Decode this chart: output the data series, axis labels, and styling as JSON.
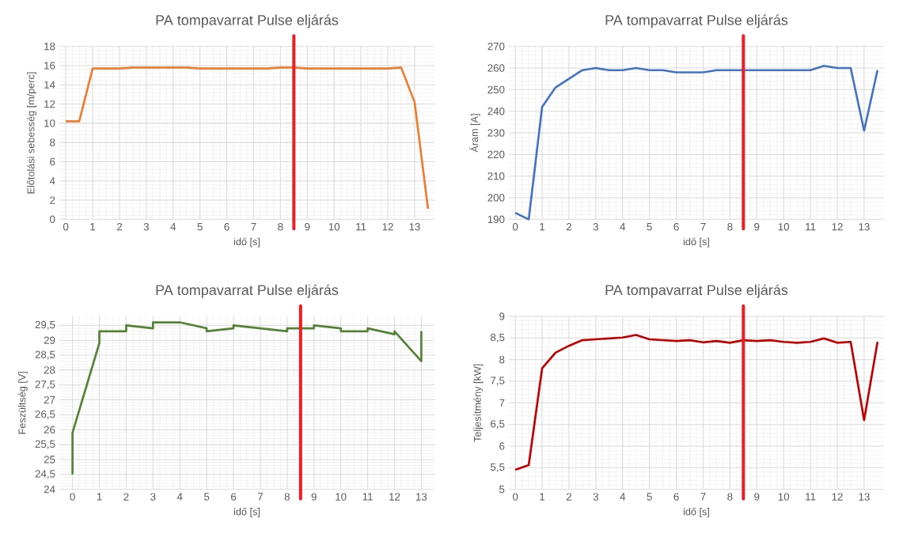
{
  "chart_data": [
    {
      "type": "line",
      "title": "PA tompavarrat Pulse eljárás",
      "xlabel": "idő [s]",
      "ylabel": "Előtolási sebesség [m/perc]",
      "grid": true,
      "series": [
        {
          "color": "#ed7d31",
          "x": [
            0,
            0.5,
            1,
            1.5,
            2,
            2.5,
            3,
            3.5,
            4,
            4.5,
            5,
            5.5,
            6,
            6.5,
            7,
            7.5,
            8,
            8.5,
            9,
            9.5,
            10,
            10.5,
            11,
            11.5,
            12,
            12.5,
            13,
            13.5
          ],
          "values": [
            10.2,
            10.2,
            15.7,
            15.7,
            15.7,
            15.8,
            15.8,
            15.8,
            15.8,
            15.8,
            15.7,
            15.7,
            15.7,
            15.7,
            15.7,
            15.7,
            15.8,
            15.8,
            15.7,
            15.7,
            15.7,
            15.7,
            15.7,
            15.7,
            15.7,
            15.8,
            12.2,
            1.1
          ]
        }
      ],
      "xlim": [
        -0.25,
        13.75
      ],
      "xticks": [
        0,
        1,
        2,
        3,
        4,
        5,
        6,
        7,
        8,
        9,
        10,
        11,
        12,
        13
      ],
      "ylim": [
        0,
        18
      ],
      "yticks": [
        0,
        2,
        4,
        6,
        8,
        10,
        12,
        14,
        16,
        18
      ],
      "ref_lines": [
        {
          "axis": "x",
          "value": 8.5,
          "color": "#ee1c25"
        }
      ]
    },
    {
      "type": "line",
      "title": "PA tompavarrat Pulse eljárás",
      "xlabel": "idő [s]",
      "ylabel": "Áram [A]",
      "grid": true,
      "series": [
        {
          "color": "#4472c4",
          "x": [
            0,
            0.5,
            1,
            1.5,
            2,
            2.5,
            3,
            3.5,
            4,
            4.5,
            5,
            5.5,
            6,
            6.5,
            7,
            7.5,
            8,
            8.5,
            9,
            9.5,
            10,
            10.5,
            11,
            11.5,
            12,
            12.5,
            13,
            13.5
          ],
          "values": [
            193,
            190,
            242,
            251,
            255,
            259,
            260,
            259,
            259,
            260,
            259,
            259,
            258,
            258,
            258,
            259,
            259,
            259,
            259,
            259,
            259,
            259,
            259,
            261,
            260,
            260,
            231,
            259
          ]
        }
      ],
      "xlim": [
        -0.25,
        13.75
      ],
      "xticks": [
        0,
        1,
        2,
        3,
        4,
        5,
        6,
        7,
        8,
        9,
        10,
        11,
        12,
        13
      ],
      "ylim": [
        190,
        270
      ],
      "yticks": [
        190,
        200,
        210,
        220,
        230,
        240,
        250,
        260,
        270
      ],
      "ref_lines": [
        {
          "axis": "x",
          "value": 8.5,
          "color": "#ee1c25"
        }
      ]
    },
    {
      "type": "line",
      "title": "PA tompavarrat Pulse eljárás",
      "xlabel": "idő [s]",
      "ylabel": "Feszültség [V]",
      "grid": true,
      "series": [
        {
          "color": "#548235",
          "x": [
            0,
            0,
            1,
            1,
            2,
            2,
            3,
            3,
            4,
            5,
            5,
            6,
            6,
            7,
            8,
            8,
            9,
            9,
            10,
            10,
            11,
            11,
            12,
            12,
            13,
            13
          ],
          "values": [
            24.5,
            25.9,
            28.9,
            29.3,
            29.3,
            29.5,
            29.4,
            29.6,
            29.6,
            29.4,
            29.3,
            29.4,
            29.5,
            29.4,
            29.3,
            29.4,
            29.4,
            29.5,
            29.4,
            29.3,
            29.3,
            29.4,
            29.2,
            29.3,
            28.3,
            29.3
          ]
        }
      ],
      "xlim": [
        -0.5,
        13.5
      ],
      "xticks": [
        0,
        1,
        2,
        3,
        4,
        5,
        6,
        7,
        8,
        9,
        10,
        11,
        12,
        13
      ],
      "ylim": [
        24,
        29.8
      ],
      "yticks": [
        24,
        {
          "value": 24.5,
          "label": "24,5"
        },
        25,
        {
          "value": 25.5,
          "label": "25,5"
        },
        26,
        {
          "value": 26.5,
          "label": "26,5"
        },
        27,
        {
          "value": 27.5,
          "label": "27,5"
        },
        28,
        {
          "value": 28.5,
          "label": "28,5"
        },
        29,
        {
          "value": 29.5,
          "label": "29,5"
        }
      ],
      "ref_lines": [
        {
          "axis": "x",
          "value": 8.5,
          "color": "#ee1c25"
        }
      ]
    },
    {
      "type": "line",
      "title": "PA tompavarrat Pulse eljárás",
      "xlabel": "idő [s]",
      "ylabel": "Teljesítmény [kW]",
      "grid": true,
      "series": [
        {
          "color": "#c00000",
          "x": [
            0,
            0.5,
            1,
            1.5,
            2,
            2.5,
            3,
            3.5,
            4,
            4.5,
            5,
            5.5,
            6,
            6.5,
            7,
            7.5,
            8,
            8.5,
            9,
            9.5,
            10,
            10.5,
            11,
            11.5,
            12,
            12.5,
            13,
            13.5
          ],
          "values": [
            5.45,
            5.56,
            7.8,
            8.16,
            8.32,
            8.45,
            8.47,
            8.49,
            8.51,
            8.57,
            8.47,
            8.45,
            8.43,
            8.45,
            8.4,
            8.43,
            8.39,
            8.45,
            8.43,
            8.45,
            8.41,
            8.39,
            8.41,
            8.49,
            8.39,
            8.41,
            6.6,
            8.41
          ]
        }
      ],
      "xlim": [
        -0.25,
        13.75
      ],
      "xticks": [
        0,
        1,
        2,
        3,
        4,
        5,
        6,
        7,
        8,
        9,
        10,
        11,
        12,
        13
      ],
      "ylim": [
        5,
        9
      ],
      "yticks": [
        5,
        {
          "value": 5.5,
          "label": "5,5"
        },
        6,
        {
          "value": 6.5,
          "label": "6,5"
        },
        7,
        {
          "value": 7.5,
          "label": "7,5"
        },
        8,
        {
          "value": 8.5,
          "label": "8,5"
        },
        9
      ],
      "ref_lines": [
        {
          "axis": "x",
          "value": 8.5,
          "color": "#ee1c25"
        }
      ]
    }
  ]
}
